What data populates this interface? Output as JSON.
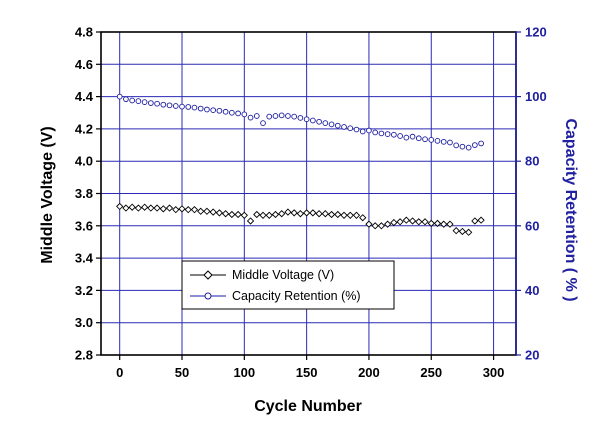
{
  "chart_data": {
    "type": "scatter",
    "xlabel": "Cycle Number",
    "ylabel_left": "Middle Voltage (V)",
    "ylabel_right": "Capacity Retention ( % )",
    "xlim": [
      -15,
      318
    ],
    "xticks": [
      "0",
      "50",
      "100",
      "150",
      "200",
      "250",
      "300"
    ],
    "ylim_left": [
      2.8,
      4.8
    ],
    "yticks_left": [
      "2.8",
      "3.0",
      "3.2",
      "3.4",
      "3.6",
      "3.8",
      "4.0",
      "4.2",
      "4.4",
      "4.6",
      "4.8"
    ],
    "ylim_right": [
      20,
      120
    ],
    "yticks_right": [
      "20",
      "40",
      "60",
      "80",
      "100",
      "120"
    ],
    "grid": true,
    "legend_position": "lower-center",
    "colors": {
      "voltage": "#000000",
      "capacity": "#1a1aa0",
      "right_axis": "#2020a0",
      "grid": "#2a2ab4"
    },
    "series": [
      {
        "name": "Middle Voltage (V)",
        "axis": "left",
        "marker": "diamond",
        "x": [
          0,
          5,
          10,
          15,
          20,
          25,
          30,
          35,
          40,
          45,
          50,
          55,
          60,
          65,
          70,
          75,
          80,
          85,
          90,
          95,
          100,
          105,
          110,
          115,
          120,
          125,
          130,
          135,
          140,
          145,
          150,
          155,
          160,
          165,
          170,
          175,
          180,
          185,
          190,
          195,
          200,
          205,
          210,
          215,
          220,
          225,
          230,
          235,
          240,
          245,
          250,
          255,
          260,
          265,
          270,
          275,
          280,
          285,
          290
        ],
        "y": [
          3.72,
          3.71,
          3.715,
          3.71,
          3.715,
          3.71,
          3.71,
          3.705,
          3.71,
          3.7,
          3.705,
          3.7,
          3.7,
          3.69,
          3.69,
          3.685,
          3.68,
          3.675,
          3.67,
          3.67,
          3.665,
          3.63,
          3.67,
          3.665,
          3.665,
          3.67,
          3.675,
          3.685,
          3.68,
          3.675,
          3.68,
          3.68,
          3.675,
          3.675,
          3.67,
          3.67,
          3.665,
          3.665,
          3.665,
          3.65,
          3.61,
          3.6,
          3.6,
          3.61,
          3.62,
          3.625,
          3.635,
          3.63,
          3.625,
          3.625,
          3.615,
          3.615,
          3.61,
          3.61,
          3.57,
          3.565,
          3.56,
          3.63,
          3.635
        ]
      },
      {
        "name": "Capacity Retention (%)",
        "axis": "right",
        "marker": "circle",
        "x": [
          0,
          5,
          10,
          15,
          20,
          25,
          30,
          35,
          40,
          45,
          50,
          55,
          60,
          65,
          70,
          75,
          80,
          85,
          90,
          95,
          100,
          105,
          110,
          115,
          120,
          125,
          130,
          135,
          140,
          145,
          150,
          155,
          160,
          165,
          170,
          175,
          180,
          185,
          190,
          195,
          200,
          205,
          210,
          215,
          220,
          225,
          230,
          235,
          240,
          245,
          250,
          255,
          260,
          265,
          270,
          275,
          280,
          285,
          290
        ],
        "y": [
          100.0,
          99.2,
          98.8,
          98.6,
          98.3,
          98.0,
          97.8,
          97.5,
          97.3,
          97.1,
          96.9,
          96.8,
          96.6,
          96.3,
          96.0,
          95.8,
          95.6,
          95.3,
          95.0,
          94.8,
          94.5,
          93.5,
          94.0,
          91.8,
          93.8,
          94.0,
          94.2,
          94.0,
          93.8,
          93.4,
          93.0,
          92.6,
          92.2,
          91.8,
          91.4,
          91.0,
          90.6,
          90.2,
          89.8,
          89.2,
          89.5,
          88.9,
          88.6,
          88.4,
          88.2,
          87.8,
          87.3,
          87.6,
          87.1,
          86.8,
          86.6,
          86.3,
          86.0,
          85.8,
          84.9,
          84.5,
          84.2,
          85.0,
          85.5
        ]
      }
    ]
  }
}
